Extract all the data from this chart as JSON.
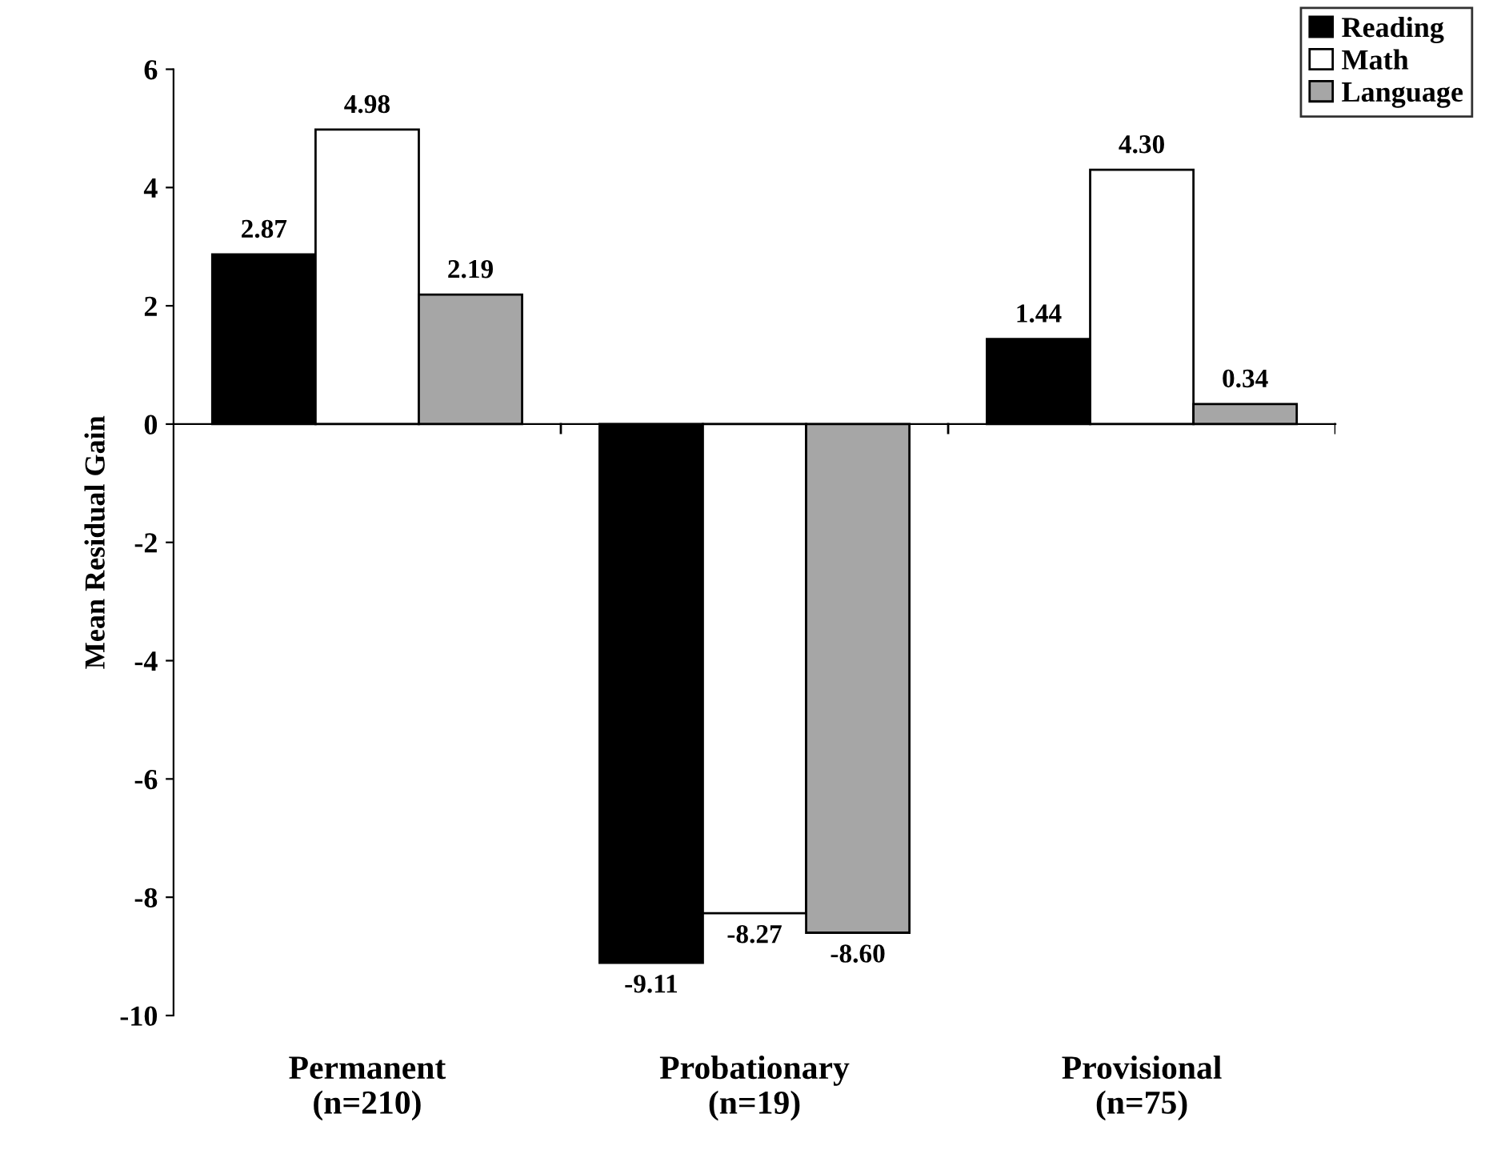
{
  "chart_data": {
    "type": "bar",
    "ylabel": "Mean Residual Gain",
    "categories": [
      "Permanent\n(n=210)",
      "Probationary\n(n=19)",
      "Provisional\n(n=75)"
    ],
    "series": [
      {
        "name": "Reading",
        "color": "#000000",
        "values": [
          2.87,
          -9.11,
          1.44
        ],
        "value_labels": [
          "2.87",
          "-9.11",
          "1.44"
        ]
      },
      {
        "name": "Math",
        "color": "#ffffff",
        "values": [
          4.98,
          -8.27,
          4.3
        ],
        "value_labels": [
          "4.98",
          "-8.27",
          "4.30"
        ]
      },
      {
        "name": "Language",
        "color": "#a6a6a6",
        "values": [
          2.19,
          -8.6,
          0.34
        ],
        "value_labels": [
          "2.19",
          "-8.60",
          "0.34"
        ]
      }
    ],
    "ylim": [
      -10,
      6
    ],
    "yticks": [
      -10,
      -8,
      -6,
      -4,
      -2,
      0,
      2,
      4,
      6
    ],
    "legend": "top right"
  }
}
